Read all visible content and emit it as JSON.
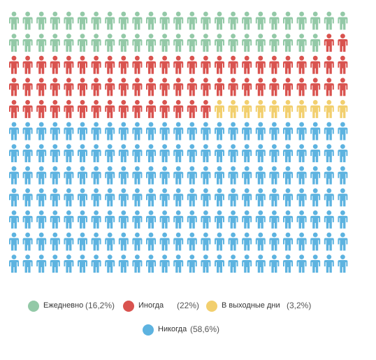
{
  "chart_data": {
    "type": "pictogram",
    "grid": {
      "rows": 12,
      "columns": 25
    },
    "series": [
      {
        "name": "Ежедневно",
        "value": "(16,2%)",
        "icons": 48,
        "color": "#93c9a7"
      },
      {
        "name": "Иногда",
        "value": "(22%)",
        "icons": 67,
        "color": "#d9534f"
      },
      {
        "name": "В выходные дни",
        "value": "(3,2%)",
        "icons": 10,
        "color": "#f2cf6e"
      },
      {
        "name": "Никогда",
        "value": "(58,6%)",
        "icons": 175,
        "color": "#5db3e0"
      }
    ]
  },
  "legend": {
    "items": [
      {
        "label": "Ежедневно",
        "pct": "(16,2%)"
      },
      {
        "label": "Иногда",
        "pct": "(22%)"
      },
      {
        "label": "В выходные дни",
        "pct": "(3,2%)"
      },
      {
        "label": "Никогда",
        "pct": "(58,6%)"
      }
    ]
  }
}
